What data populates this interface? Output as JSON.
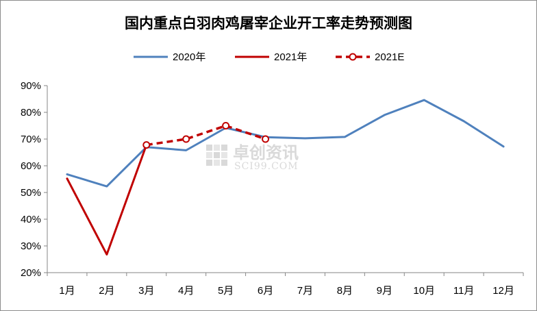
{
  "chart_data": {
    "type": "line",
    "title": "国内重点白羽肉鸡屠宰企业开工率走势预测图",
    "categories": [
      "1月",
      "2月",
      "3月",
      "4月",
      "5月",
      "6月",
      "7月",
      "8月",
      "9月",
      "10月",
      "11月",
      "12月"
    ],
    "y_ticks": [
      "90%",
      "80%",
      "70%",
      "60%",
      "50%",
      "40%",
      "30%",
      "20%"
    ],
    "ylim": [
      20,
      90
    ],
    "y_tick_values": [
      90,
      80,
      70,
      60,
      50,
      40,
      30,
      20
    ],
    "grid": false,
    "legend_position": "top",
    "series": [
      {
        "name": "2020年",
        "color": "#4f81bd",
        "style": "solid",
        "markers": false,
        "values": [
          56.8,
          52.3,
          67.0,
          65.8,
          74.2,
          70.7,
          70.3,
          70.8,
          79.0,
          84.6,
          76.7,
          67.2
        ]
      },
      {
        "name": "2021年",
        "color": "#c00000",
        "style": "solid",
        "markers": false,
        "values": [
          55.2,
          26.8,
          67.8,
          null,
          null,
          null,
          null,
          null,
          null,
          null,
          null,
          null
        ]
      },
      {
        "name": "2021E",
        "color": "#c00000",
        "style": "dashed",
        "markers": true,
        "values": [
          null,
          null,
          67.8,
          70.0,
          75.0,
          70.0,
          null,
          null,
          null,
          null,
          null,
          null
        ]
      }
    ],
    "watermark": {
      "cn": "卓创资讯",
      "en": "SCI99.COM"
    }
  }
}
